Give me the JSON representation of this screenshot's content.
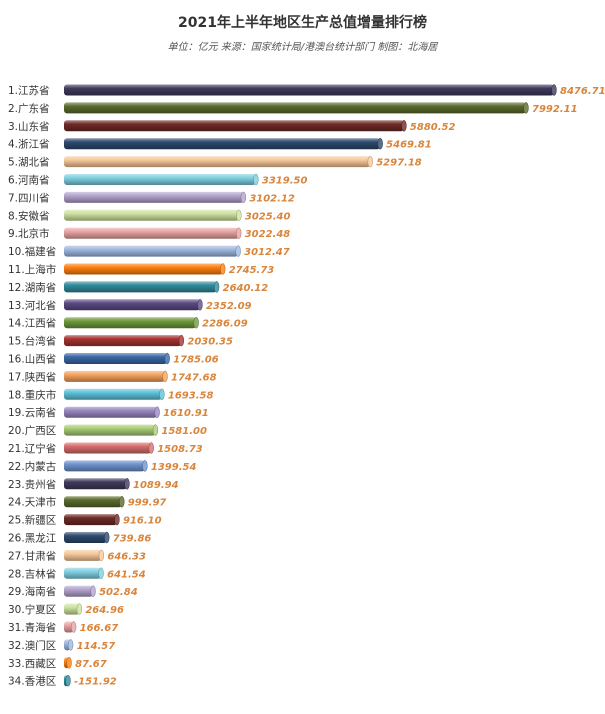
{
  "title": "2021年上半年地区生产总值增量排行榜",
  "subtitle": "单位：亿元 来源：国家统计局/港澳台统计部门 制图：北海居",
  "chart_data": {
    "type": "bar",
    "orientation": "horizontal",
    "title": "2021年上半年地区生产总值增量排行榜",
    "subtitle": "单位：亿元 来源：国家统计局/港澳台统计部门 制图：北海居",
    "xlabel": "",
    "ylabel": "",
    "grid": false,
    "legend": "none",
    "xlim": [
      0,
      8476.71
    ],
    "categories": [
      "1.江苏省",
      "2.广东省",
      "3.山东省",
      "4.浙江省",
      "5.湖北省",
      "6.河南省",
      "7.四川省",
      "8.安徽省",
      "9.北京市",
      "10.福建省",
      "11.上海市",
      "12.湖南省",
      "13.河北省",
      "14.江西省",
      "15.台湾省",
      "16.山西省",
      "17.陕西省",
      "18.重庆市",
      "19.云南省",
      "20.广西区",
      "21.辽宁省",
      "22.内蒙古",
      "23.贵州省",
      "24.天津市",
      "25.新疆区",
      "26.黑龙江",
      "27.甘肃省",
      "28.吉林省",
      "29.海南省",
      "30.宁夏区",
      "31.青海省",
      "32.澳门区",
      "33.西藏区",
      "34.香港区"
    ],
    "values": [
      8476.71,
      7992.11,
      5880.52,
      5469.81,
      5297.18,
      3319.5,
      3102.12,
      3025.4,
      3022.48,
      3012.47,
      2745.73,
      2640.12,
      2352.09,
      2286.09,
      2030.35,
      1785.06,
      1747.68,
      1693.58,
      1610.91,
      1581.0,
      1508.73,
      1399.54,
      1089.94,
      999.97,
      916.1,
      739.86,
      646.33,
      641.54,
      502.84,
      264.96,
      166.67,
      114.57,
      87.67,
      -151.92
    ],
    "value_labels": [
      "8476.71",
      "7992.11",
      "5880.52",
      "5469.81",
      "5297.18",
      "3319.50",
      "3102.12",
      "3025.40",
      "3022.48",
      "3012.47",
      "2745.73",
      "2640.12",
      "2352.09",
      "2286.09",
      "2030.35",
      "1785.06",
      "1747.68",
      "1693.58",
      "1610.91",
      "1581.00",
      "1508.73",
      "1399.54",
      "1089.94",
      "999.97",
      "916.10",
      "739.86",
      "646.33",
      "641.54",
      "502.84",
      "264.96",
      "166.67",
      "114.57",
      "87.67",
      "-151.92"
    ],
    "palette": [
      "#3f3a5c",
      "#5b6b2c",
      "#6e2a26",
      "#2d4a6e",
      "#f7c99a",
      "#7fd0e0",
      "#b3a3cc",
      "#cde29f",
      "#e9a4a4",
      "#9fb8e0",
      "#ff7f0e",
      "#2f8c9c",
      "#5c4a82",
      "#6f9a3b",
      "#a63232",
      "#3a69a8",
      "#f5a25d",
      "#5dc2d9",
      "#9887c0",
      "#a9cd76",
      "#d86d6d",
      "#6f93cf"
    ],
    "label_color": "#d9853b"
  }
}
